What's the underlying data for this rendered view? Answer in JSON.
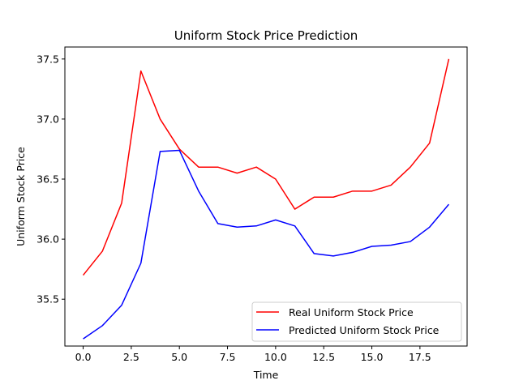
{
  "chart_data": {
    "type": "line",
    "title": "Uniform Stock Price Prediction",
    "xlabel": "Time",
    "ylabel": "Uniform Stock Price",
    "xlim": [
      -0.95,
      19.95
    ],
    "ylim": [
      35.11,
      37.6
    ],
    "xticks": [
      0.0,
      2.5,
      5.0,
      7.5,
      10.0,
      12.5,
      15.0,
      17.5
    ],
    "xtick_labels": [
      "0.0",
      "2.5",
      "5.0",
      "7.5",
      "10.0",
      "12.5",
      "15.0",
      "17.5"
    ],
    "yticks": [
      35.5,
      36.0,
      36.5,
      37.0,
      37.5
    ],
    "ytick_labels": [
      "35.5",
      "36.0",
      "36.5",
      "37.0",
      "37.5"
    ],
    "grid": false,
    "legend_position": "lower-right",
    "x": [
      0,
      1,
      2,
      3,
      4,
      5,
      6,
      7,
      8,
      9,
      10,
      11,
      12,
      13,
      14,
      15,
      16,
      17,
      18,
      19
    ],
    "series": [
      {
        "name": "Real Uniform Stock Price",
        "color": "#ff0000",
        "values": [
          35.7,
          35.9,
          36.3,
          37.4,
          37.0,
          36.75,
          36.6,
          36.6,
          36.55,
          36.6,
          36.5,
          36.25,
          36.35,
          36.35,
          36.4,
          36.4,
          36.45,
          36.6,
          36.8,
          37.5
        ]
      },
      {
        "name": "Predicted Uniform Stock Price",
        "color": "#0000ff",
        "values": [
          35.17,
          35.28,
          35.45,
          35.8,
          36.73,
          36.74,
          36.4,
          36.13,
          36.1,
          36.11,
          36.16,
          36.11,
          35.88,
          35.86,
          35.89,
          35.94,
          35.95,
          35.98,
          36.1,
          36.29
        ]
      }
    ]
  }
}
